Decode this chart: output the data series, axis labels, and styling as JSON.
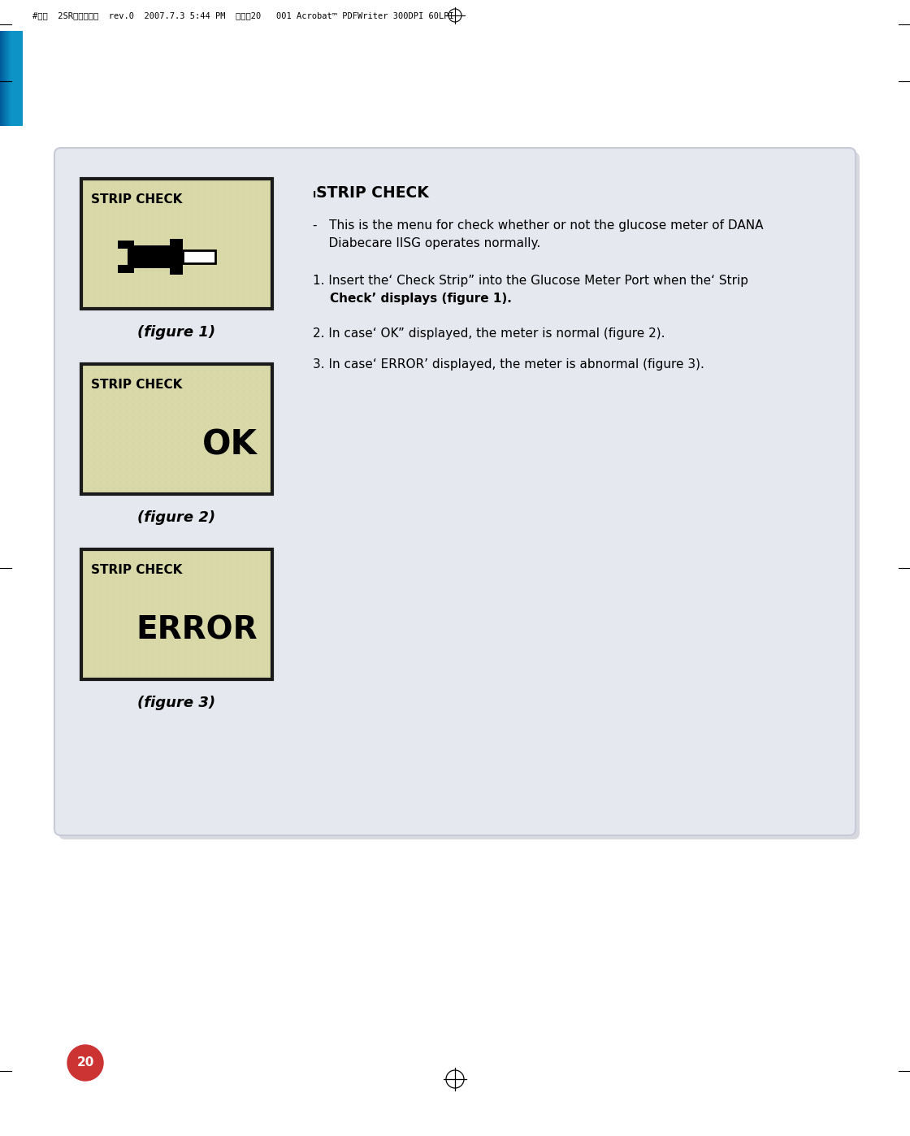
{
  "page_bg": "#ffffff",
  "header_text": "#다나  2SR영문메뉴얼  rev.0  2007.7.3 5:44 PM  페이지20   001 Acrobat™ PDFWriter 300DPI 60LPI",
  "content_panel_bg": "#e6e8f0",
  "content_panel_border": "#c8cad8",
  "lcd_bg": "#d8d8a8",
  "lcd_dot_color": "#c8c878",
  "lcd_border": "#1a1a1a",
  "strip_check_label": "STRIP CHECK",
  "figure1_caption": "(figure 1)",
  "figure2_caption": "(figure 2)",
  "figure3_caption": "(figure 3)",
  "fig2_text": "OK",
  "fig3_text": "ERROR",
  "title_text": "ₗSTRIP CHECK",
  "bullet_line1": "-   This is the menu for check whether or not the glucose meter of DANA",
  "bullet_line2": "    Diabecare IISG operates normally.",
  "step1_line1": "1. Insert the‘ Check Strip” into the Glucose Meter Port when the‘ Strip",
  "step1_line2": "    Check’ displays (figure 1).",
  "step2": "2. In case‘ OK” displayed, the meter is normal (figure 2).",
  "step3": "3. In case‘ ERROR’ displayed, the meter is abnormal (figure 3).",
  "page_num": "20",
  "page_num_bg": "#cc3333",
  "header_blue_dark": [
    0.0,
    0.35,
    0.6
  ],
  "header_blue_light": [
    0.05,
    0.58,
    0.78
  ]
}
